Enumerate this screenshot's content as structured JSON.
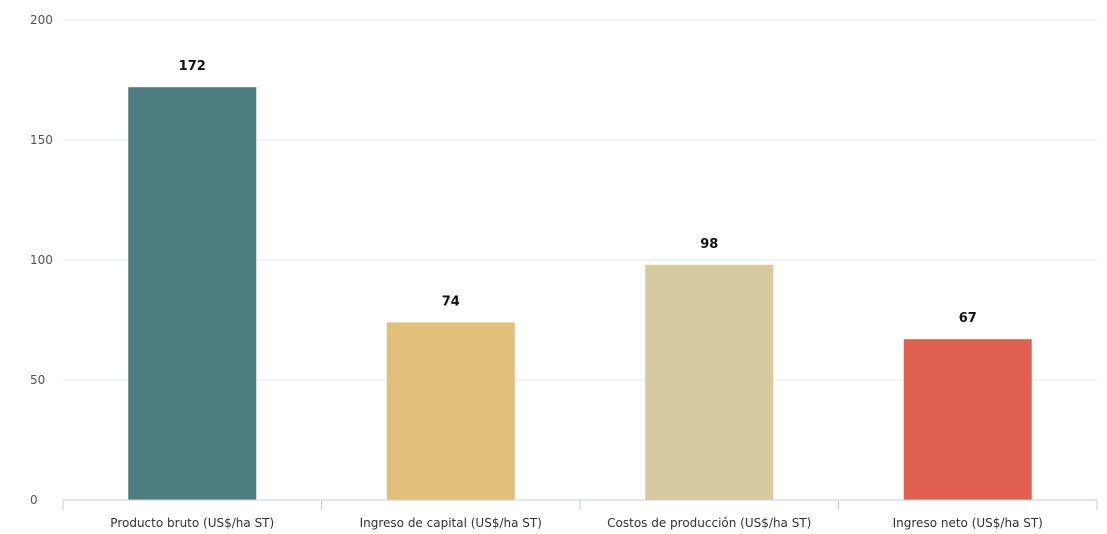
{
  "chart_data": {
    "type": "bar",
    "categories": [
      "Producto bruto (US$/ha ST)",
      "Ingreso de capital (US$/ha ST)",
      "Costos de producción (US$/ha ST)",
      "Ingreso neto (US$/ha ST)"
    ],
    "values": [
      172,
      74,
      98,
      67
    ],
    "data_labels": [
      "172",
      "74",
      "98",
      "67"
    ],
    "colors": [
      "#4e7f7e",
      "#e3c07a",
      "#d6cba0",
      "#e2604f"
    ],
    "ylim": [
      0,
      200
    ],
    "yticks": [
      0,
      50,
      100,
      150,
      200
    ],
    "ytick_labels": [
      "0",
      "50",
      "100",
      "150",
      "200"
    ],
    "grid": true,
    "legend": "none"
  }
}
